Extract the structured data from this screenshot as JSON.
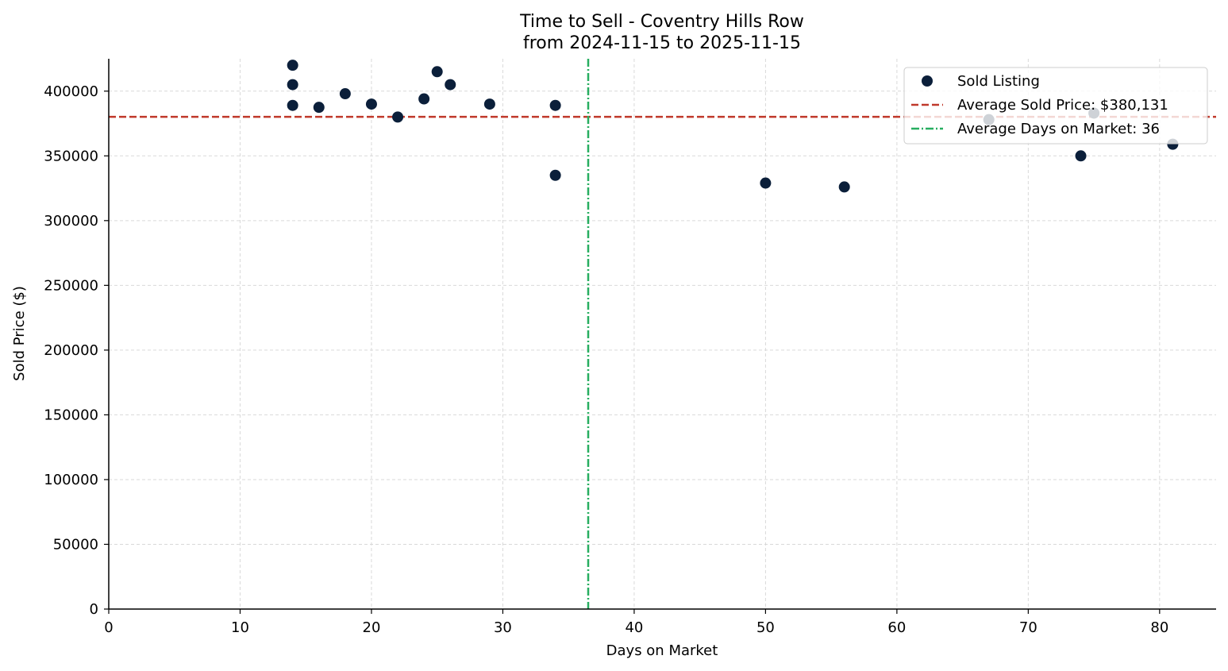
{
  "chart_data": {
    "type": "scatter",
    "title_line1": "Time to Sell - Coventry Hills Row",
    "title_line2": "from 2024-11-15 to 2025-11-15",
    "xlabel": "Days on Market",
    "ylabel": "Sold Price ($)",
    "xlim": [
      0,
      84.3
    ],
    "ylim": [
      0,
      425000
    ],
    "x_ticks": [
      0,
      10,
      20,
      30,
      40,
      50,
      60,
      70,
      80
    ],
    "y_ticks": [
      0,
      50000,
      100000,
      150000,
      200000,
      250000,
      300000,
      350000,
      400000
    ],
    "grid": true,
    "legend_position": "top-right",
    "series": [
      {
        "name": "Sold Listing",
        "color": "#0b1f3a",
        "points": [
          {
            "x": 14,
            "y": 420000
          },
          {
            "x": 14,
            "y": 405000
          },
          {
            "x": 14,
            "y": 389000
          },
          {
            "x": 16,
            "y": 387500
          },
          {
            "x": 18,
            "y": 398000
          },
          {
            "x": 20,
            "y": 390000
          },
          {
            "x": 22,
            "y": 380000
          },
          {
            "x": 24,
            "y": 394000
          },
          {
            "x": 25,
            "y": 415000
          },
          {
            "x": 26,
            "y": 405000
          },
          {
            "x": 29,
            "y": 390000
          },
          {
            "x": 34,
            "y": 389000
          },
          {
            "x": 34,
            "y": 335000
          },
          {
            "x": 50,
            "y": 329000
          },
          {
            "x": 56,
            "y": 326000
          },
          {
            "x": 67,
            "y": 378000
          },
          {
            "x": 74,
            "y": 350000
          },
          {
            "x": 75,
            "y": 383000
          },
          {
            "x": 81,
            "y": 359000
          }
        ]
      }
    ],
    "reference_lines": {
      "avg_price": {
        "value": 380131,
        "label": "Average Sold Price: $380,131",
        "color": "#c0392b"
      },
      "avg_days": {
        "value": 36.5,
        "label": "Average Days on Market: 36",
        "color": "#27ae60"
      }
    }
  }
}
